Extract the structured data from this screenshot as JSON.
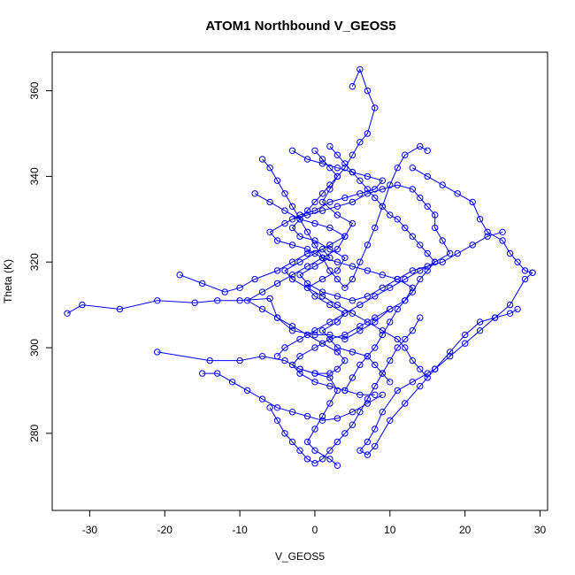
{
  "chart_data": {
    "type": "line",
    "title": "ATOM1 Northbound V_GEOS5",
    "xlabel": "V_GEOS5",
    "ylabel": "Theta (K)",
    "xlim": [
      -35,
      31
    ],
    "ylim": [
      262,
      369
    ],
    "xticks": [
      -30,
      -20,
      -10,
      0,
      10,
      20,
      30
    ],
    "yticks": [
      280,
      300,
      320,
      340,
      360
    ],
    "grid": false,
    "color": "#0000ff",
    "series": [
      {
        "points": [
          [
            -33,
            308
          ],
          [
            -31,
            310
          ],
          [
            -26,
            309
          ],
          [
            -21,
            311
          ],
          [
            -16,
            310.5
          ],
          [
            -13,
            311
          ],
          [
            -10,
            311
          ],
          [
            -6,
            311.5
          ],
          [
            -5,
            307
          ],
          [
            -3,
            304
          ],
          [
            0,
            303
          ],
          [
            2,
            303
          ],
          [
            4,
            302
          ],
          [
            6,
            304
          ],
          [
            8,
            306
          ],
          [
            10,
            309
          ]
        ]
      },
      {
        "points": [
          [
            -21,
            299
          ],
          [
            -14,
            297
          ],
          [
            -10,
            297
          ],
          [
            -7,
            298
          ],
          [
            -4,
            297
          ],
          [
            -2,
            295
          ],
          [
            0,
            294
          ],
          [
            2,
            293
          ],
          [
            3,
            290
          ],
          [
            2,
            287
          ],
          [
            1,
            284
          ],
          [
            0,
            281
          ],
          [
            -1,
            278
          ],
          [
            0,
            276
          ],
          [
            2,
            274
          ],
          [
            3,
            272.5
          ]
        ]
      },
      {
        "points": [
          [
            -18,
            317
          ],
          [
            -15,
            315
          ],
          [
            -12,
            313
          ],
          [
            -10,
            314
          ],
          [
            -8,
            316
          ],
          [
            -5,
            318
          ],
          [
            -3,
            320
          ],
          [
            -1,
            322
          ],
          [
            1,
            323
          ],
          [
            2,
            321
          ],
          [
            0,
            319
          ],
          [
            -2,
            317
          ],
          [
            -1,
            315
          ],
          [
            1,
            313
          ],
          [
            3,
            312
          ],
          [
            5,
            311
          ],
          [
            7,
            312
          ],
          [
            9,
            314
          ],
          [
            11,
            316
          ],
          [
            13,
            318
          ],
          [
            15,
            319
          ],
          [
            17,
            320
          ],
          [
            19,
            322
          ],
          [
            21,
            324
          ],
          [
            23,
            326
          ],
          [
            25,
            327
          ]
        ]
      },
      {
        "points": [
          [
            29,
            317.5
          ],
          [
            28,
            316
          ],
          [
            26,
            310
          ],
          [
            24,
            307
          ],
          [
            22,
            304
          ],
          [
            20,
            301
          ],
          [
            18,
            298
          ],
          [
            16,
            295
          ],
          [
            15,
            294
          ],
          [
            13,
            292
          ],
          [
            11,
            290
          ],
          [
            9,
            285
          ],
          [
            8,
            281
          ],
          [
            7,
            278
          ],
          [
            6,
            276
          ],
          [
            7,
            275
          ],
          [
            8,
            277
          ],
          [
            10,
            283
          ],
          [
            12,
            287
          ],
          [
            14,
            291
          ],
          [
            16,
            295
          ],
          [
            18,
            299
          ],
          [
            20,
            303
          ],
          [
            22,
            306
          ],
          [
            24,
            307
          ],
          [
            26,
            308
          ],
          [
            27,
            309
          ]
        ]
      },
      {
        "points": [
          [
            -7,
            344
          ],
          [
            -6,
            342
          ],
          [
            -5,
            339
          ],
          [
            -4,
            336
          ],
          [
            -3,
            333
          ],
          [
            -2,
            330
          ],
          [
            -1,
            327
          ],
          [
            0,
            324
          ],
          [
            1,
            321
          ],
          [
            2,
            318
          ],
          [
            3,
            316
          ],
          [
            4,
            314
          ],
          [
            5,
            316
          ],
          [
            6,
            320
          ],
          [
            7,
            324
          ],
          [
            8,
            328
          ],
          [
            9,
            333
          ],
          [
            10,
            338
          ],
          [
            11,
            342
          ],
          [
            12,
            345
          ],
          [
            14,
            347
          ],
          [
            15,
            346
          ]
        ]
      },
      {
        "points": [
          [
            5,
            361
          ],
          [
            6,
            365
          ],
          [
            7,
            360
          ],
          [
            8,
            356
          ],
          [
            7,
            350
          ],
          [
            6,
            348
          ],
          [
            5,
            345
          ],
          [
            4,
            342
          ],
          [
            3,
            340
          ],
          [
            2,
            338
          ],
          [
            1,
            336
          ],
          [
            0,
            334
          ],
          [
            -1,
            332
          ],
          [
            -2,
            330
          ],
          [
            -3,
            328
          ],
          [
            -2,
            326
          ],
          [
            0,
            325
          ],
          [
            2,
            323
          ],
          [
            4,
            321
          ],
          [
            3,
            318
          ],
          [
            1,
            316
          ],
          [
            -1,
            314
          ],
          [
            0,
            312
          ],
          [
            2,
            310
          ],
          [
            4,
            308
          ],
          [
            3,
            306
          ],
          [
            1,
            304
          ],
          [
            2,
            302
          ],
          [
            3,
            300
          ],
          [
            5,
            299
          ],
          [
            7,
            298
          ],
          [
            8,
            296
          ],
          [
            9,
            294
          ],
          [
            10,
            292
          ]
        ]
      },
      {
        "points": [
          [
            0,
            346
          ],
          [
            1,
            344
          ],
          [
            2,
            342
          ],
          [
            3,
            340
          ],
          [
            2,
            337
          ],
          [
            1,
            334
          ],
          [
            3,
            331
          ],
          [
            5,
            329
          ],
          [
            4,
            326
          ],
          [
            2,
            324
          ],
          [
            0,
            322
          ],
          [
            -2,
            320
          ],
          [
            -4,
            318
          ],
          [
            -3,
            316
          ],
          [
            -1,
            314
          ],
          [
            1,
            312
          ],
          [
            3,
            310
          ],
          [
            5,
            308
          ],
          [
            7,
            306
          ],
          [
            9,
            304
          ],
          [
            11,
            302
          ],
          [
            12,
            300
          ],
          [
            13,
            297
          ],
          [
            14,
            295
          ],
          [
            15,
            293
          ]
        ]
      },
      {
        "points": [
          [
            -8,
            336
          ],
          [
            -6,
            334
          ],
          [
            -4,
            332
          ],
          [
            -2,
            330
          ],
          [
            0,
            329
          ],
          [
            2,
            328
          ],
          [
            4,
            326
          ],
          [
            3,
            323
          ],
          [
            1,
            321
          ],
          [
            -1,
            319
          ],
          [
            -3,
            317
          ],
          [
            -5,
            315
          ],
          [
            -7,
            313
          ],
          [
            -9,
            311
          ],
          [
            -7,
            309
          ],
          [
            -5,
            307
          ],
          [
            -3,
            305
          ],
          [
            -1,
            303
          ],
          [
            1,
            301
          ],
          [
            3,
            299
          ],
          [
            4,
            297
          ],
          [
            3,
            295
          ],
          [
            2,
            294
          ],
          [
            0,
            294
          ],
          [
            -2,
            295
          ]
        ]
      },
      {
        "points": [
          [
            13,
            342
          ],
          [
            15,
            340
          ],
          [
            17,
            338
          ],
          [
            19,
            336
          ],
          [
            21,
            334
          ],
          [
            22,
            330
          ],
          [
            23,
            327
          ],
          [
            25,
            325
          ],
          [
            26,
            322
          ],
          [
            27,
            320
          ],
          [
            28,
            318
          ],
          [
            29,
            317.5
          ]
        ]
      },
      {
        "points": [
          [
            -5,
            298
          ],
          [
            -4,
            300
          ],
          [
            -2,
            302
          ],
          [
            0,
            304
          ],
          [
            2,
            306
          ],
          [
            4,
            308
          ],
          [
            6,
            310
          ],
          [
            8,
            312
          ],
          [
            10,
            314
          ],
          [
            12,
            316
          ],
          [
            14,
            318
          ],
          [
            16,
            320
          ],
          [
            18,
            322
          ],
          [
            17,
            325
          ],
          [
            16,
            328
          ],
          [
            16,
            331
          ],
          [
            15,
            333
          ],
          [
            14,
            335
          ],
          [
            13,
            337
          ],
          [
            11,
            338
          ],
          [
            9,
            337
          ],
          [
            7,
            336
          ],
          [
            5,
            334
          ],
          [
            3,
            333
          ],
          [
            1,
            332
          ],
          [
            -1,
            331
          ],
          [
            -3,
            330
          ]
        ]
      },
      {
        "points": [
          [
            -6,
            286
          ],
          [
            -5,
            283
          ],
          [
            -4,
            280
          ],
          [
            -3,
            278
          ],
          [
            -2,
            276
          ],
          [
            -1,
            274
          ],
          [
            0,
            273
          ],
          [
            1,
            274
          ],
          [
            2,
            276
          ],
          [
            3,
            278
          ],
          [
            4,
            280
          ],
          [
            5,
            282
          ],
          [
            6,
            285
          ],
          [
            7,
            288
          ],
          [
            8,
            291
          ],
          [
            9,
            294
          ],
          [
            10,
            297
          ],
          [
            11,
            300
          ],
          [
            12,
            302
          ],
          [
            13,
            304
          ],
          [
            14,
            307
          ]
        ]
      },
      {
        "points": [
          [
            -3,
            346
          ],
          [
            -1,
            344
          ],
          [
            1,
            343
          ],
          [
            3,
            342
          ],
          [
            5,
            341
          ],
          [
            7,
            340
          ],
          [
            9,
            339
          ],
          [
            8,
            337
          ],
          [
            6,
            336
          ],
          [
            4,
            335
          ],
          [
            2,
            334
          ],
          [
            0,
            332
          ],
          [
            -2,
            331
          ],
          [
            -4,
            329
          ],
          [
            -6,
            327
          ],
          [
            -5,
            325
          ],
          [
            -3,
            324
          ],
          [
            -1,
            323
          ],
          [
            1,
            321
          ],
          [
            3,
            320
          ],
          [
            5,
            319
          ],
          [
            7,
            318
          ],
          [
            9,
            317
          ],
          [
            11,
            316
          ],
          [
            13,
            314
          ],
          [
            12,
            311
          ],
          [
            10,
            309
          ],
          [
            8,
            307
          ],
          [
            6,
            305
          ],
          [
            4,
            303
          ],
          [
            2,
            302
          ],
          [
            0,
            300
          ],
          [
            -2,
            298
          ],
          [
            -3,
            296
          ],
          [
            -2,
            294
          ],
          [
            0,
            292
          ],
          [
            2,
            291
          ],
          [
            4,
            290
          ],
          [
            6,
            289
          ],
          [
            8,
            289
          ]
        ]
      },
      {
        "points": [
          [
            -15,
            294
          ],
          [
            -13,
            294
          ],
          [
            -11,
            292
          ],
          [
            -9,
            290
          ],
          [
            -7,
            288
          ],
          [
            -5,
            286
          ],
          [
            -3,
            285
          ],
          [
            -1,
            284
          ],
          [
            1,
            283
          ],
          [
            3,
            283.5
          ],
          [
            5,
            285
          ],
          [
            7,
            287
          ],
          [
            9,
            289
          ]
        ]
      },
      {
        "points": [
          [
            2,
            347
          ],
          [
            3,
            345
          ],
          [
            4,
            343
          ],
          [
            5,
            341
          ],
          [
            6,
            339
          ],
          [
            7,
            337
          ],
          [
            8,
            335
          ],
          [
            9,
            333
          ],
          [
            10,
            331
          ],
          [
            11,
            330
          ],
          [
            12,
            328
          ],
          [
            13,
            326
          ],
          [
            14,
            324
          ],
          [
            15,
            322
          ],
          [
            16,
            320
          ],
          [
            15,
            318
          ],
          [
            14,
            316
          ],
          [
            13,
            313
          ],
          [
            12,
            311
          ],
          [
            11,
            309
          ],
          [
            10,
            306
          ],
          [
            9,
            303
          ],
          [
            8,
            300
          ],
          [
            7,
            298
          ],
          [
            6,
            296
          ],
          [
            5,
            293
          ],
          [
            4,
            290
          ]
        ]
      }
    ]
  }
}
